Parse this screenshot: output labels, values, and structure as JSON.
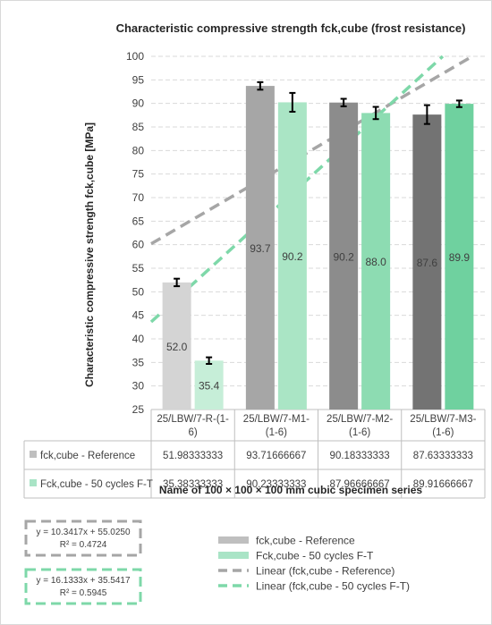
{
  "chart_data": {
    "type": "bar",
    "title": "Characteristic compressive strength fck,cube (frost resistance)",
    "xlabel": "Name of 100 × 100 × 100 mm cubic specimen series",
    "ylabel": "Characteristic compressive strength fck,cube [MPa]",
    "ylim": [
      25,
      100
    ],
    "ytick_step": 5,
    "grid": true,
    "categories": [
      [
        "25/LBW/7-R-(1-",
        "6)"
      ],
      [
        "25/LBW/7-M1-",
        "(1-6)"
      ],
      [
        "25/LBW/7-M2-",
        "(1-6)"
      ],
      [
        "25/LBW/7-M3-",
        "(1-6)"
      ]
    ],
    "series": [
      {
        "name": "fck,cube - Reference",
        "table_label": "fck,cube - Reference",
        "values": [
          51.98333333,
          93.71666667,
          90.18333333,
          87.63333333
        ],
        "table_values": [
          "51.98333333",
          "93.71666667",
          "90.18333333",
          "87.63333333"
        ],
        "data_labels": [
          "52.0",
          "93.7",
          "90.2",
          "87.6"
        ],
        "errors": [
          0.8,
          0.8,
          0.8,
          2.0
        ],
        "colors": [
          "#d4d4d4",
          "#a6a6a6",
          "#8c8c8c",
          "#737373"
        ],
        "legend_color": "#bfbfbf"
      },
      {
        "name": "Fck,cube - 50 cycles F-T",
        "table_label": "Fck,cube - 50 cycles F-T",
        "values": [
          35.38333333,
          90.23333333,
          87.96666667,
          89.91666667
        ],
        "table_values": [
          "35.38333333",
          "90.23333333",
          "87.96666667",
          "89.91666667"
        ],
        "data_labels": [
          "35.4",
          "90.2",
          "88.0",
          "89.9"
        ],
        "errors": [
          0.7,
          2.0,
          1.3,
          0.7
        ],
        "colors": [
          "#c6eed8",
          "#aae5c5",
          "#8ddcb2",
          "#6fd19f"
        ],
        "legend_color": "#a9e4c6"
      }
    ],
    "trendlines": [
      {
        "name": "Linear (fck,cube - Reference)",
        "equation": "y = 10.3417x + 55.0250",
        "r2": "R² = 0.4724",
        "slope": 10.3417,
        "intercept": 55.025,
        "color": "#a6a6a6"
      },
      {
        "name": "Linear (fck,cube - 50 cycles F-T)",
        "equation": "y = 16.1333x + 35.5417",
        "r2": "R² = 0.5945",
        "slope": 16.1333,
        "intercept": 35.5417,
        "color": "#7ed8a9"
      }
    ]
  }
}
